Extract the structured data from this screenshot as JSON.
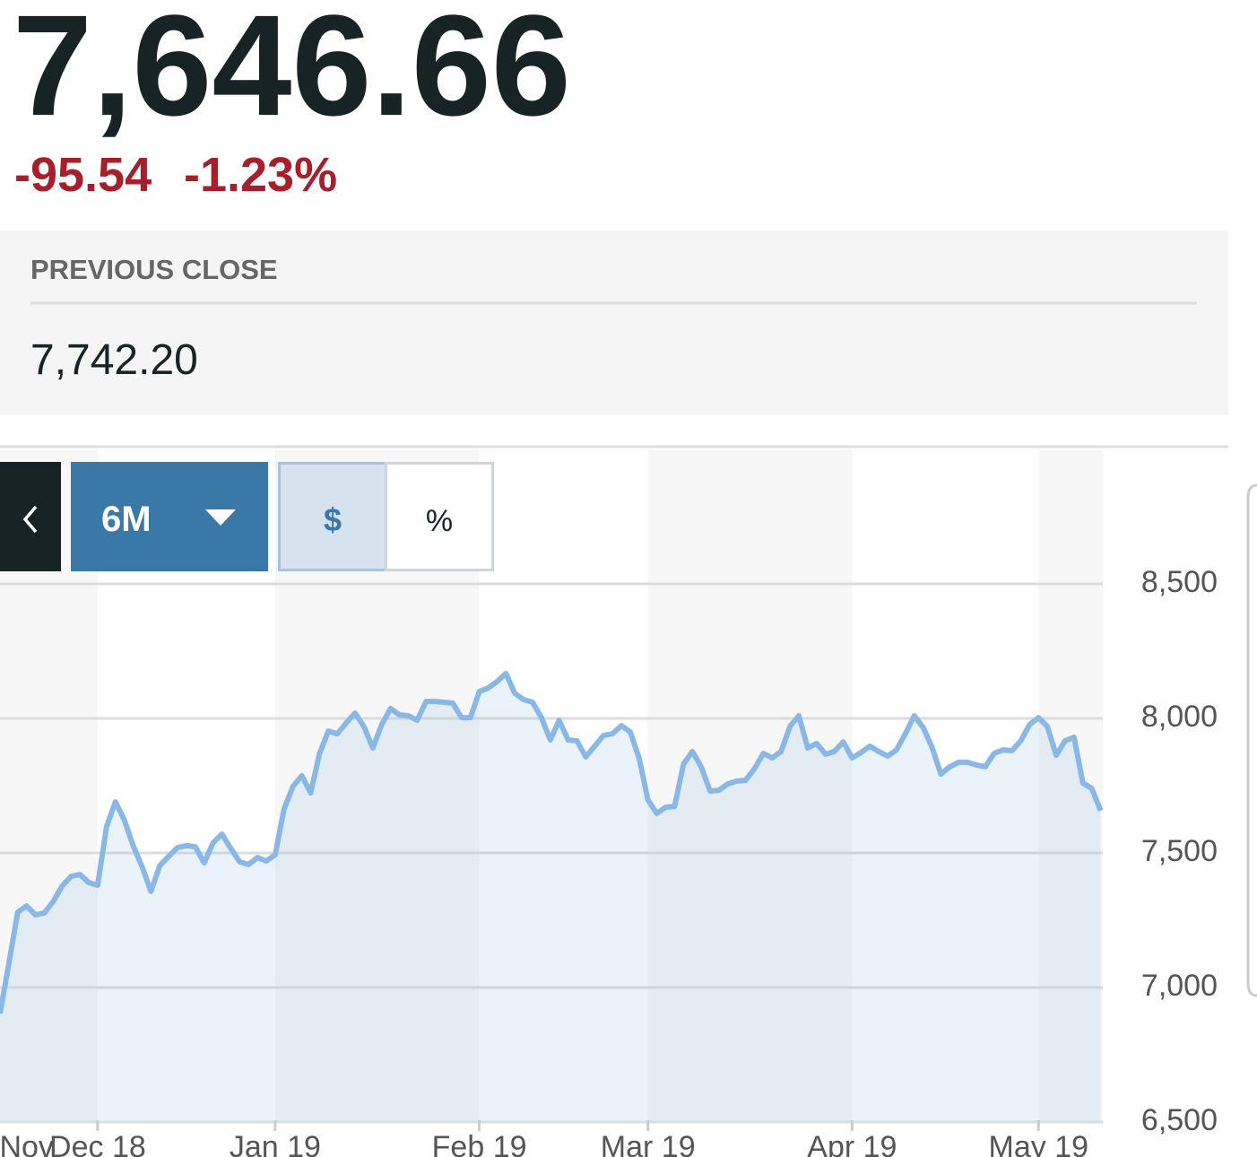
{
  "quote": {
    "price": "7,646.66",
    "change": "-95.54",
    "change_percent": "-1.23%"
  },
  "previous_close": {
    "label": "PREVIOUS CLOSE",
    "value": "7,742.20"
  },
  "controls": {
    "range": "6M",
    "dollar": "$",
    "percent": "%"
  },
  "chart_data": {
    "type": "area",
    "color": "#8ab8e6",
    "grid": true,
    "categories": [
      null,
      null,
      null,
      "Nov",
      null,
      null,
      null,
      null,
      null,
      null,
      null,
      "Dec 18",
      null,
      null,
      null,
      null,
      null,
      null,
      null,
      null,
      null,
      null,
      null,
      null,
      null,
      null,
      null,
      null,
      null,
      null,
      null,
      "Jan 19",
      null,
      null,
      null,
      null,
      null,
      null,
      null,
      null,
      null,
      null,
      null,
      null,
      null,
      null,
      null,
      null,
      null,
      null,
      null,
      null,
      null,
      null,
      "Feb 19",
      null,
      null,
      null,
      null,
      null,
      null,
      null,
      null,
      null,
      null,
      null,
      null,
      null,
      null,
      null,
      null,
      null,
      null,
      "Mar 19",
      null,
      null,
      null,
      null,
      null,
      null,
      null,
      null,
      null,
      null,
      null,
      null,
      null,
      null,
      null,
      null,
      null,
      null,
      null,
      null,
      null,
      null,
      "Apr 19",
      null,
      null,
      null,
      null,
      null,
      null,
      null,
      null,
      null,
      null,
      null,
      null,
      null,
      null,
      null,
      null,
      null,
      null,
      null,
      null,
      "May 19",
      null,
      null,
      null,
      null,
      null,
      null,
      null
    ],
    "values": [
      6903,
      7090,
      7280,
      7303,
      7270,
      7277,
      7320,
      7377,
      7413,
      7420,
      7390,
      7380,
      7597,
      7690,
      7623,
      7527,
      7450,
      7357,
      7453,
      7487,
      7520,
      7527,
      7523,
      7463,
      7537,
      7570,
      7517,
      7467,
      7457,
      7483,
      7470,
      7493,
      7663,
      7747,
      7787,
      7723,
      7870,
      7953,
      7943,
      7983,
      8020,
      7970,
      7890,
      7977,
      8037,
      8013,
      8010,
      7993,
      8063,
      8063,
      8060,
      8057,
      8003,
      8003,
      8100,
      8113,
      8137,
      8167,
      8093,
      8070,
      8060,
      8003,
      7920,
      7993,
      7920,
      7917,
      7857,
      7897,
      7937,
      7943,
      7973,
      7950,
      7853,
      7697,
      7647,
      7670,
      7673,
      7830,
      7877,
      7820,
      7730,
      7733,
      7757,
      7767,
      7770,
      7813,
      7870,
      7853,
      7877,
      7970,
      8010,
      7890,
      7907,
      7867,
      7877,
      7913,
      7853,
      7873,
      7897,
      7877,
      7860,
      7883,
      7943,
      8010,
      7967,
      7893,
      7793,
      7820,
      7837,
      7837,
      7827,
      7820,
      7870,
      7883,
      7880,
      7917,
      7977,
      8003,
      7970,
      7863,
      7917,
      7930,
      7760,
      7740,
      7657
    ],
    "ylim": [
      6500,
      9000
    ],
    "yticks": [
      {
        "value": 6500,
        "label": "6,500"
      },
      {
        "value": 7000,
        "label": "7,000"
      },
      {
        "value": 7500,
        "label": "7,500"
      },
      {
        "value": 8000,
        "label": "8,000"
      },
      {
        "value": 8500,
        "label": "8,500"
      }
    ]
  }
}
